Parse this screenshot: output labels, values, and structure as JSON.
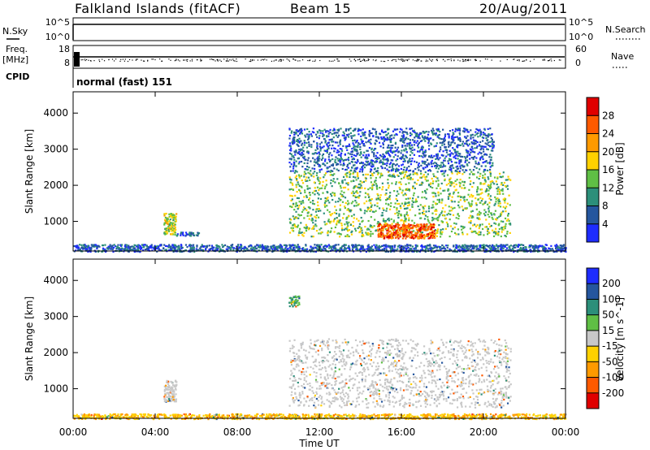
{
  "header": {
    "title": "Falkland Islands (fitACF)",
    "beam": "Beam 15",
    "date": "20/Aug/2011"
  },
  "noise_panel": {
    "left_label": "N.Sky",
    "right_label": "N.Search",
    "tick_top": "10^5",
    "tick_bottom": "10^0"
  },
  "freq_panel": {
    "left_label": "Freq.",
    "unit_label": "[MHz]",
    "left_ticks": [
      "18",
      "8"
    ],
    "right_ticks": [
      "60",
      "0"
    ],
    "right_label": "Nave"
  },
  "cpid_row": {
    "label": "CPID",
    "value": "normal (fast) 151"
  },
  "chart_data": [
    {
      "type": "heatmap",
      "quantity": "Power",
      "xlabel": "Time UT",
      "ylabel": "Slant Range [km]",
      "x_ticks": [
        "00:00",
        "04:00",
        "08:00",
        "12:00",
        "16:00",
        "20:00",
        "00:00"
      ],
      "x_range_hours": [
        0,
        24
      ],
      "y_ticks": [
        1000,
        2000,
        3000,
        4000
      ],
      "ylim": [
        180,
        4590
      ],
      "colorbar": {
        "label": "Power [dB]",
        "ticks": [
          4,
          8,
          12,
          16,
          20,
          24,
          28
        ],
        "range": [
          0,
          32
        ],
        "colors": [
          "#1e2cff",
          "#25569e",
          "#2c8f7a",
          "#5fbf45",
          "#ffd100",
          "#ff9a00",
          "#ff5a00",
          "#e00000"
        ]
      },
      "regions": [
        {
          "t_start": 4.4,
          "t_end": 5.0,
          "range_min": 650,
          "range_max": 1250,
          "typical_power": 16
        },
        {
          "t_start": 5.0,
          "t_end": 6.1,
          "range_min": 620,
          "range_max": 720,
          "typical_power": 6
        },
        {
          "t_start": 10.5,
          "t_end": 21.3,
          "range_min": 600,
          "range_max": 2400,
          "typical_power": 14
        },
        {
          "t_start": 14.8,
          "t_end": 17.6,
          "range_min": 550,
          "range_max": 950,
          "typical_power": 26
        },
        {
          "t_start": 10.5,
          "t_end": 20.5,
          "range_min": 2400,
          "range_max": 3600,
          "typical_power": 6
        },
        {
          "t_start": 0.0,
          "t_end": 24.0,
          "range_min": 180,
          "range_max": 380,
          "typical_power": 6
        }
      ]
    },
    {
      "type": "heatmap",
      "quantity": "Velocity",
      "xlabel": "Time UT",
      "ylabel": "Slant Range [km]",
      "x_ticks": [
        "00:00",
        "04:00",
        "08:00",
        "12:00",
        "16:00",
        "20:00",
        "00:00"
      ],
      "y_ticks": [
        1000,
        2000,
        3000,
        4000
      ],
      "ylim": [
        180,
        4590
      ],
      "colorbar": {
        "label": "Velocity [m s^-1]",
        "ticks": [
          "200",
          "100",
          "50",
          "15",
          "-15",
          "-50",
          "-100",
          "-200"
        ],
        "colors": [
          "#1e2cff",
          "#25569e",
          "#2c8f7a",
          "#5fbf45",
          "#c8c8c8",
          "#ffd100",
          "#ff9a00",
          "#ff5a00",
          "#e00000"
        ]
      },
      "regions": [
        {
          "t_start": 4.4,
          "t_end": 5.0,
          "range_min": 650,
          "range_max": 1250,
          "typical_velocity": 0
        },
        {
          "t_start": 10.5,
          "t_end": 21.3,
          "range_min": 500,
          "range_max": 2400,
          "typical_velocity": 0
        },
        {
          "t_start": 10.5,
          "t_end": 11.0,
          "range_min": 3300,
          "range_max": 3600,
          "typical_velocity": 30
        },
        {
          "t_start": 0.0,
          "t_end": 24.0,
          "range_min": 180,
          "range_max": 320,
          "typical_velocity": -30
        }
      ]
    }
  ]
}
